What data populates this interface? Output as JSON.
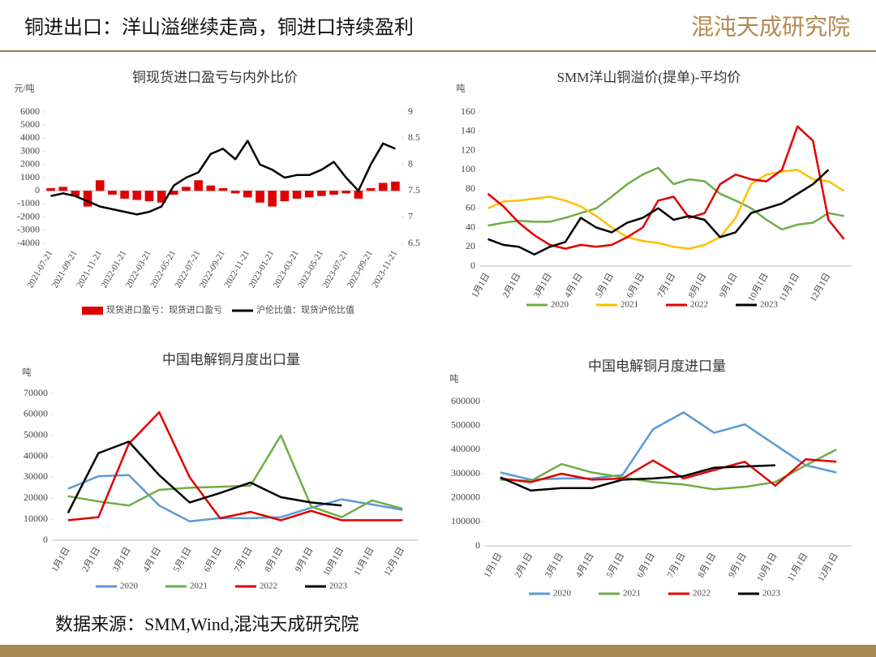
{
  "header": {
    "title": "铜进出口：洋山溢继续走高，铜进口持续盈利",
    "logo": "混沌天成研究院"
  },
  "chart_data": [
    {
      "type": "combo",
      "title": "铜现货进口盈亏与内外比价",
      "y_label": "元/吨",
      "categories": [
        "2021-07-21",
        null,
        "2021-09-21",
        null,
        "2021-11-21",
        null,
        "2022-01-21",
        null,
        "2022-03-21",
        null,
        "2022-05-21",
        null,
        "2022-07-21",
        null,
        "2022-09-21",
        null,
        "2022-11-21",
        null,
        "2023-01-21",
        null,
        "2023-03-21",
        null,
        "2023-05-21",
        null,
        "2023-07-21",
        null,
        "2023-09-21",
        null,
        "2023-11-21"
      ],
      "ylim": [
        -4000,
        6000
      ],
      "yticks": [
        -4000,
        -3000,
        -2000,
        -1000,
        0,
        1000,
        2000,
        3000,
        4000,
        5000,
        6000
      ],
      "y2lim": [
        6.5,
        9
      ],
      "y2ticks": [
        6.5,
        7,
        7.5,
        8,
        8.5,
        9
      ],
      "series": [
        {
          "name": "现货进口盈亏：现货进口盈亏",
          "type": "bar",
          "color": "#e00000",
          "values": [
            200,
            300,
            -400,
            -1200,
            800,
            -300,
            -600,
            -700,
            -800,
            -900,
            -300,
            300,
            800,
            400,
            200,
            -200,
            -500,
            -900,
            -1200,
            -800,
            -600,
            -500,
            -400,
            -300,
            -200,
            -600,
            200,
            600,
            700
          ]
        },
        {
          "name": "沪伦比值：现货沪伦比值",
          "type": "line",
          "axis": "y2",
          "color": "#000000",
          "values": [
            7.4,
            7.45,
            7.4,
            7.3,
            7.2,
            7.15,
            7.1,
            7.05,
            7.1,
            7.2,
            7.6,
            7.75,
            7.85,
            8.2,
            8.3,
            8.1,
            8.45,
            8.0,
            7.9,
            7.75,
            7.8,
            7.8,
            7.9,
            8.05,
            7.75,
            7.5,
            8.0,
            8.4,
            8.3
          ]
        }
      ]
    },
    {
      "type": "line",
      "title": "SMM洋山铜溢价(提单)-平均价",
      "y_label": "吨",
      "categories": [
        "1月1日",
        null,
        "2月1日",
        null,
        "3月1日",
        null,
        "4月1日",
        null,
        "5月1日",
        null,
        "6月1日",
        null,
        "7月1日",
        null,
        "8月1日",
        null,
        "9月1日",
        null,
        "10月1日",
        null,
        "11月1日",
        null,
        "12月1日",
        null
      ],
      "ylim": [
        0,
        160
      ],
      "yticks": [
        0,
        20,
        40,
        60,
        80,
        100,
        120,
        140,
        160
      ],
      "series": [
        {
          "name": "2020",
          "color": "#70ad47",
          "values": [
            42,
            45,
            47,
            46,
            46,
            50,
            55,
            60,
            72,
            85,
            95,
            102,
            85,
            90,
            88,
            75,
            68,
            60,
            48,
            38,
            43,
            45,
            55,
            52
          ]
        },
        {
          "name": "2021",
          "color": "#ffc000",
          "values": [
            60,
            67,
            68,
            70,
            72,
            68,
            62,
            52,
            40,
            30,
            26,
            24,
            20,
            18,
            22,
            30,
            50,
            85,
            95,
            98,
            100,
            90,
            88,
            78
          ]
        },
        {
          "name": "2022",
          "color": "#e00000",
          "values": [
            75,
            62,
            45,
            32,
            22,
            18,
            22,
            20,
            22,
            30,
            40,
            68,
            72,
            50,
            55,
            85,
            95,
            90,
            88,
            100,
            145,
            130,
            48,
            28
          ]
        },
        {
          "name": "2023",
          "color": "#000000",
          "values": [
            28,
            22,
            20,
            12,
            20,
            25,
            50,
            40,
            35,
            45,
            50,
            60,
            48,
            52,
            48,
            30,
            35,
            55,
            60,
            65,
            75,
            85,
            100,
            null
          ]
        }
      ]
    },
    {
      "type": "line",
      "title": "中国电解铜月度出口量",
      "y_label": "吨",
      "categories": [
        "1月1日",
        "2月1日",
        "3月1日",
        "4月1日",
        "5月1日",
        "6月1日",
        "7月1日",
        "8月1日",
        "9月1日",
        "10月1日",
        "11月1日",
        "12月1日"
      ],
      "ylim": [
        0,
        70000
      ],
      "yticks": [
        0,
        10000,
        20000,
        30000,
        40000,
        50000,
        60000,
        70000
      ],
      "series": [
        {
          "name": "2020",
          "color": "#5b9bd5",
          "values": [
            24500,
            30500,
            31000,
            16500,
            9000,
            10500,
            10500,
            11000,
            15500,
            19500,
            17000,
            14500
          ]
        },
        {
          "name": "2021",
          "color": "#70ad47",
          "values": [
            21000,
            18500,
            16500,
            24000,
            25000,
            25500,
            26000,
            50000,
            16000,
            11000,
            19000,
            15000
          ]
        },
        {
          "name": "2022",
          "color": "#e00000",
          "values": [
            9500,
            11000,
            46000,
            61000,
            30000,
            10500,
            13500,
            9500,
            14000,
            9500,
            9500,
            9500
          ]
        },
        {
          "name": "2023",
          "color": "#000000",
          "values": [
            13000,
            41500,
            47000,
            31000,
            18000,
            22500,
            27500,
            20500,
            18000,
            16500,
            null,
            null
          ]
        }
      ]
    },
    {
      "type": "line",
      "title": "中国电解铜月度进口量",
      "y_label": "吨",
      "categories": [
        "1月1日",
        "2月1日",
        "3月1日",
        "4月1日",
        "5月1日",
        "6月1日",
        "7月1日",
        "8月1日",
        "9月1日",
        "10月1日",
        "11月1日",
        "12月1日"
      ],
      "ylim": [
        0,
        600000
      ],
      "yticks": [
        0,
        100000,
        200000,
        300000,
        400000,
        500000,
        600000
      ],
      "series": [
        {
          "name": "2020",
          "color": "#5b9bd5",
          "values": [
            305000,
            275000,
            280000,
            280000,
            295000,
            485000,
            555000,
            470000,
            505000,
            420000,
            335000,
            305000
          ]
        },
        {
          "name": "2021",
          "color": "#70ad47",
          "values": [
            275000,
            270000,
            340000,
            305000,
            285000,
            265000,
            255000,
            235000,
            245000,
            265000,
            335000,
            400000
          ]
        },
        {
          "name": "2022",
          "color": "#e00000",
          "values": [
            280000,
            265000,
            300000,
            275000,
            280000,
            355000,
            280000,
            315000,
            350000,
            250000,
            360000,
            350000
          ]
        },
        {
          "name": "2023",
          "color": "#000000",
          "values": [
            285000,
            230000,
            240000,
            240000,
            275000,
            280000,
            290000,
            325000,
            330000,
            335000,
            null,
            null
          ]
        }
      ]
    }
  ],
  "footer": {
    "source": "数据来源：SMM,Wind,混沌天成研究院"
  }
}
